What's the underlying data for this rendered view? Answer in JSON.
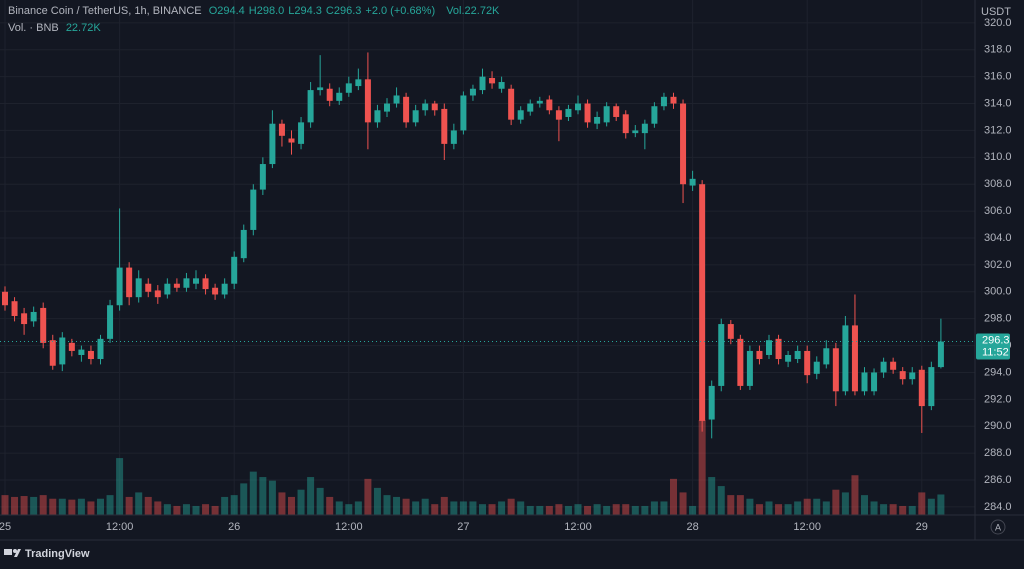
{
  "chart_data": {
    "type": "candlestick",
    "title": "Binance Coin / TetherUS, 1h, BINANCE",
    "header_values": [
      "O294.4",
      "H298.0",
      "L294.3",
      "C296.3",
      "+2.0 (+0.68%)"
    ],
    "header_volume": "Vol.22.72K",
    "volume_title": "Vol. · BNB",
    "volume_label": "22.72K",
    "axis_unit": "USDT",
    "last_price": 296.3,
    "countdown": "11:52",
    "brand": "TradingView",
    "scale_button": "A",
    "up_color": "#26a69a",
    "down_color": "#ef5350",
    "grid": true,
    "ylim": [
      283.4,
      321.7
    ],
    "vlim": [
      0,
      570
    ],
    "yticks": [
      {
        "value": 284,
        "label": "284.0"
      },
      {
        "value": 286,
        "label": "286.0"
      },
      {
        "value": 288,
        "label": "288.0"
      },
      {
        "value": 290,
        "label": "290.0"
      },
      {
        "value": 292,
        "label": "292.0"
      },
      {
        "value": 294,
        "label": "294.0"
      },
      {
        "value": 296,
        "label": "296.0"
      },
      {
        "value": 298,
        "label": "298.0"
      },
      {
        "value": 300,
        "label": "300.0"
      },
      {
        "value": 302,
        "label": "302.0"
      },
      {
        "value": 304,
        "label": "304.0"
      },
      {
        "value": 306,
        "label": "306.0"
      },
      {
        "value": 308,
        "label": "308.0"
      },
      {
        "value": 310,
        "label": "310.0"
      },
      {
        "value": 312,
        "label": "312.0"
      },
      {
        "value": 314,
        "label": "314.0"
      },
      {
        "value": 316,
        "label": "316.0"
      },
      {
        "value": 318,
        "label": "318.0"
      },
      {
        "value": 320,
        "label": "320.0"
      }
    ],
    "categories": [
      "25",
      null,
      null,
      null,
      null,
      null,
      null,
      null,
      null,
      null,
      null,
      null,
      "12:00",
      null,
      null,
      null,
      null,
      null,
      null,
      null,
      null,
      null,
      null,
      null,
      "26",
      null,
      null,
      null,
      null,
      null,
      null,
      null,
      null,
      null,
      null,
      null,
      "12:00",
      null,
      null,
      null,
      null,
      null,
      null,
      null,
      null,
      null,
      null,
      null,
      "27",
      null,
      null,
      null,
      null,
      null,
      null,
      null,
      null,
      null,
      null,
      null,
      "12:00",
      null,
      null,
      null,
      null,
      null,
      null,
      null,
      null,
      null,
      null,
      null,
      "28",
      null,
      null,
      null,
      null,
      null,
      null,
      null,
      null,
      null,
      null,
      null,
      "12:00",
      null,
      null,
      null,
      null,
      null,
      null,
      null,
      null,
      null,
      null,
      null,
      "29",
      null,
      null
    ],
    "open": [
      300,
      299.3,
      298.4,
      297.8,
      298.8,
      296.4,
      294.6,
      296.2,
      295.3,
      295.6,
      295,
      296.5,
      299,
      301.8,
      299.6,
      300.6,
      300.1,
      299.8,
      300.6,
      300.3,
      300.6,
      301,
      300.3,
      299.8,
      300.6,
      302.5,
      304.6,
      307.6,
      309.5,
      312.5,
      311.4,
      311,
      312.6,
      315,
      315.1,
      314.2,
      314.8,
      315.3,
      315.8,
      312.6,
      313.4,
      314,
      314.5,
      312.6,
      313.5,
      314,
      313.6,
      311,
      312,
      314.6,
      315,
      315.9,
      315.1,
      315.1,
      312.8,
      313.4,
      314,
      314.3,
      313.5,
      313,
      313.5,
      314,
      312.5,
      312.6,
      313.8,
      313.2,
      311.8,
      311.8,
      312.5,
      313.8,
      314.5,
      314,
      307.9,
      308,
      290.5,
      293,
      297.6,
      296.5,
      293,
      295.6,
      295.3,
      296.5,
      294.8,
      295,
      295.6,
      293.9,
      294.6,
      295.8,
      292.6,
      297.5,
      292.6,
      292.6,
      294,
      294.8,
      294.1,
      293.5,
      294.2,
      291.5,
      294.4
    ],
    "high": [
      300.4,
      299.6,
      298.8,
      298.9,
      299.2,
      296.8,
      297,
      296.5,
      296,
      296,
      296.8,
      299.4,
      306.2,
      302.2,
      301.6,
      301,
      300.5,
      301,
      301,
      301.4,
      301.6,
      301.3,
      300.6,
      301,
      303,
      305,
      308,
      310,
      313.5,
      312.8,
      312,
      313,
      315.6,
      317.6,
      315.5,
      315.2,
      316,
      316.6,
      317.8,
      313.9,
      314.4,
      315.2,
      314.8,
      313.9,
      314.3,
      314.2,
      314,
      312.5,
      314.9,
      315.4,
      316.6,
      316.4,
      316,
      315.4,
      313.8,
      314.3,
      314.5,
      314.6,
      313.8,
      313.9,
      314.6,
      314.3,
      313.4,
      314.1,
      314,
      313.5,
      312.4,
      312.8,
      314.1,
      314.8,
      314.8,
      314.3,
      309,
      308.3,
      293.4,
      298,
      297.9,
      296.8,
      296,
      296,
      296.8,
      296.8,
      295.6,
      296,
      296,
      295.2,
      296.4,
      296.2,
      298.2,
      299.8,
      294.4,
      294.3,
      295.1,
      295.1,
      294.4,
      294.4,
      294.5,
      294.8,
      298
    ],
    "low": [
      298.6,
      297.8,
      296.8,
      297.4,
      295.8,
      294.2,
      294.1,
      295.2,
      294.8,
      294.6,
      294.6,
      296.2,
      298.6,
      299,
      299.2,
      299.6,
      299.1,
      299.5,
      300,
      300,
      300.2,
      299.8,
      299.4,
      299.5,
      300.2,
      302.2,
      304.2,
      307.2,
      309.2,
      310.8,
      310.2,
      310.6,
      312.2,
      314.6,
      313.8,
      313.9,
      314.5,
      315,
      310.6,
      312.2,
      313,
      313.7,
      312.2,
      312.3,
      313.1,
      313.1,
      309.8,
      310.6,
      311.7,
      314.2,
      314.7,
      315.1,
      314.8,
      312.4,
      312.5,
      313.1,
      313.7,
      313.2,
      311.2,
      312.7,
      313.2,
      312.2,
      312.1,
      312.3,
      312.7,
      311.4,
      311.5,
      310.6,
      312.2,
      313.5,
      313.6,
      306.6,
      307.5,
      289.6,
      289.1,
      292.6,
      296.1,
      292.7,
      292.7,
      294.6,
      295,
      294.6,
      294.4,
      294.7,
      293.2,
      293.5,
      294.3,
      291.5,
      292.3,
      292.3,
      292.3,
      292.3,
      293.6,
      293.9,
      293.1,
      293.1,
      289.5,
      291.2,
      294.3
    ],
    "close": [
      299,
      298.2,
      297.6,
      298.5,
      296.2,
      294.5,
      296.6,
      295.6,
      295.7,
      295,
      296.5,
      299,
      301.8,
      299.6,
      301,
      300,
      299.6,
      300.6,
      300.3,
      301,
      301,
      300.2,
      299.8,
      300.6,
      302.6,
      304.6,
      307.6,
      309.5,
      312.5,
      311.6,
      311.1,
      312.6,
      315,
      315.2,
      314.2,
      314.8,
      315.5,
      315.8,
      312.6,
      313.5,
      314,
      314.6,
      312.6,
      313.5,
      314,
      313.5,
      311,
      312,
      314.6,
      315.1,
      316,
      315.5,
      315.6,
      312.8,
      313.5,
      314,
      314.2,
      313.5,
      312.8,
      313.6,
      314,
      312.6,
      313,
      313.8,
      313,
      311.8,
      312,
      312.5,
      313.8,
      314.5,
      314,
      308,
      308.4,
      290.4,
      293,
      297.6,
      296.5,
      293,
      295.6,
      295,
      296.4,
      295,
      295.3,
      295.6,
      293.8,
      294.8,
      295.8,
      292.6,
      297.5,
      292.6,
      294,
      294,
      294.8,
      294.2,
      293.5,
      294,
      291.5,
      294.4,
      296.3
    ],
    "volume": [
      22,
      20,
      21,
      20,
      22,
      18,
      18,
      17,
      18,
      15,
      18,
      22,
      63,
      20,
      25,
      20,
      15,
      12,
      10,
      12,
      10,
      12,
      10,
      20,
      22,
      35,
      48,
      42,
      38,
      25,
      20,
      28,
      42,
      30,
      20,
      15,
      12,
      15,
      40,
      30,
      22,
      20,
      18,
      15,
      18,
      12,
      20,
      15,
      15,
      15,
      12,
      12,
      15,
      18,
      15,
      10,
      10,
      10,
      12,
      10,
      12,
      10,
      12,
      10,
      12,
      12,
      10,
      10,
      15,
      15,
      40,
      25,
      10,
      105,
      42,
      32,
      22,
      22,
      18,
      12,
      15,
      12,
      12,
      15,
      18,
      18,
      15,
      28,
      25,
      44,
      22,
      15,
      12,
      12,
      10,
      10,
      25,
      18,
      22.72
    ]
  }
}
